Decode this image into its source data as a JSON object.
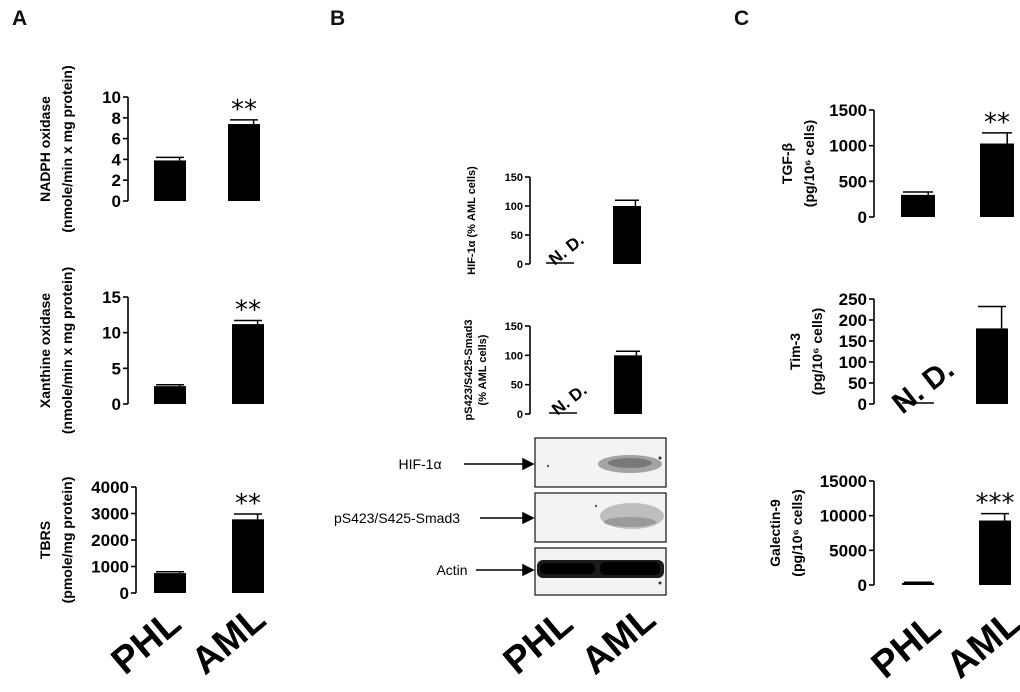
{
  "panels": {
    "A": "A",
    "B": "B",
    "C": "C"
  },
  "group_labels": [
    "PHL",
    "AML"
  ],
  "blot": {
    "rows": [
      "HIF-1α",
      "pS423/S425-Smad3",
      "Actin"
    ]
  },
  "chart_data": [
    {
      "type": "bar",
      "panel": "A",
      "ylabel_lines": [
        "NADPH oxidase",
        "(nmole/min x mg protein)"
      ],
      "categories": [
        "PHL",
        "AML"
      ],
      "values": [
        3.9,
        7.4
      ],
      "errors": [
        0.3,
        0.4
      ],
      "yticks": [
        0,
        2,
        4,
        6,
        8,
        10
      ],
      "ylim": [
        0,
        10
      ],
      "significance": [
        "",
        "**"
      ],
      "nd": [
        false,
        false
      ]
    },
    {
      "type": "bar",
      "panel": "A",
      "ylabel_lines": [
        "Xanthine oxidase",
        "(nmole/min x mg protein)"
      ],
      "categories": [
        "PHL",
        "AML"
      ],
      "values": [
        2.5,
        11.2
      ],
      "errors": [
        0.2,
        0.5
      ],
      "yticks": [
        0,
        5,
        10,
        15
      ],
      "ylim": [
        0,
        15
      ],
      "significance": [
        "",
        "**"
      ],
      "nd": [
        false,
        false
      ]
    },
    {
      "type": "bar",
      "panel": "A",
      "ylabel_lines": [
        "TBRS",
        "(pmole/mg protein)"
      ],
      "categories": [
        "PHL",
        "AML"
      ],
      "values": [
        750,
        2780
      ],
      "errors": [
        50,
        200
      ],
      "yticks": [
        0,
        1000,
        2000,
        3000,
        4000
      ],
      "ylim": [
        0,
        4000
      ],
      "significance": [
        "",
        "**"
      ],
      "nd": [
        false,
        false
      ]
    },
    {
      "type": "bar",
      "panel": "B",
      "ylabel_lines": [
        "HIF-1α (% AML cells)"
      ],
      "categories": [
        "PHL",
        "AML"
      ],
      "values": [
        0,
        100
      ],
      "errors": [
        0,
        10
      ],
      "yticks": [
        0,
        50,
        100,
        150
      ],
      "ylim": [
        0,
        150
      ],
      "significance": [
        "",
        ""
      ],
      "nd": [
        true,
        false
      ],
      "nd_text": "N. D."
    },
    {
      "type": "bar",
      "panel": "B",
      "ylabel_lines": [
        "pS423/S425-Smad3",
        "(% AML cells)"
      ],
      "categories": [
        "PHL",
        "AML"
      ],
      "values": [
        0,
        100
      ],
      "errors": [
        0,
        7
      ],
      "yticks": [
        0,
        50,
        100,
        150
      ],
      "ylim": [
        0,
        150
      ],
      "significance": [
        "",
        ""
      ],
      "nd": [
        true,
        false
      ],
      "nd_text": "N. D."
    },
    {
      "type": "bar",
      "panel": "C",
      "ylabel_lines": [
        "TGF-β",
        "(pg/10⁶ cells)"
      ],
      "categories": [
        "PHL",
        "AML"
      ],
      "values": [
        310,
        1030
      ],
      "errors": [
        40,
        150
      ],
      "yticks": [
        0,
        500,
        1000,
        1500
      ],
      "ylim": [
        0,
        1500
      ],
      "significance": [
        "",
        "**"
      ],
      "nd": [
        false,
        false
      ]
    },
    {
      "type": "bar",
      "panel": "C",
      "ylabel_lines": [
        "Tim-3",
        "(pg/10⁶ cells)"
      ],
      "categories": [
        "PHL",
        "AML"
      ],
      "values": [
        0,
        180
      ],
      "errors": [
        0,
        52
      ],
      "yticks": [
        0,
        50,
        100,
        150,
        200,
        250
      ],
      "ylim": [
        0,
        250
      ],
      "significance": [
        "",
        ""
      ],
      "nd": [
        true,
        false
      ],
      "nd_text": "N. D."
    },
    {
      "type": "bar",
      "panel": "C",
      "ylabel_lines": [
        "Galectin-9",
        "(pg/10⁶ cells)"
      ],
      "categories": [
        "PHL",
        "AML"
      ],
      "values": [
        300,
        9300
      ],
      "errors": [
        100,
        1000
      ],
      "yticks": [
        0,
        5000,
        10000,
        15000
      ],
      "ylim": [
        0,
        15000
      ],
      "significance": [
        "",
        "***"
      ],
      "nd": [
        false,
        false
      ]
    }
  ]
}
